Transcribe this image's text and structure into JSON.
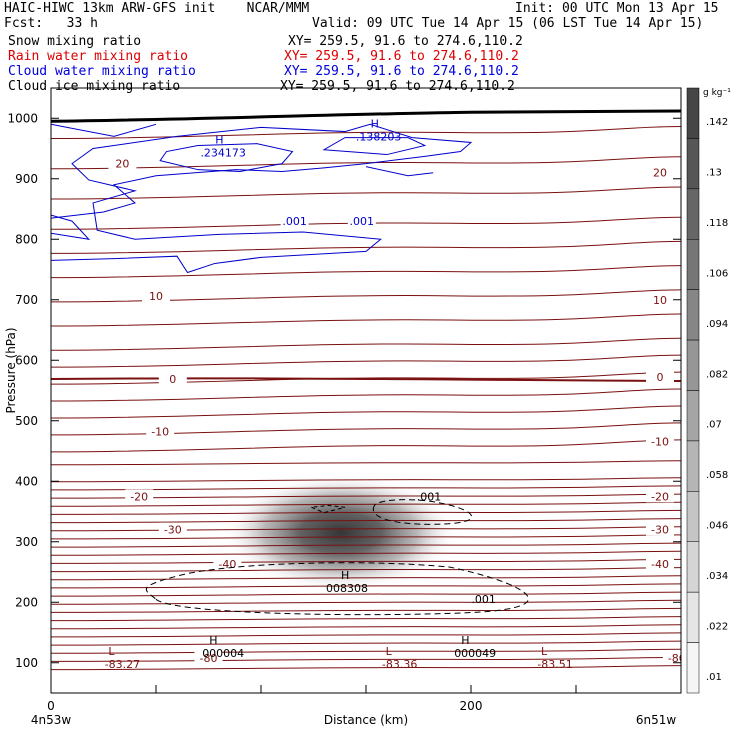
{
  "header": {
    "title_left": "HAIC-HIWC 13km ARW-GFS init    NCAR/MMM",
    "init": "Init: 00 UTC Mon 13 Apr 15",
    "fcst": "Fcst:   33 h",
    "valid": "Valid: 09 UTC Tue 14 Apr 15 (06 LST Tue 14 Apr 15)",
    "fields": [
      {
        "name": "Snow mixing ratio",
        "xy": "XY= 259.5, 91.6 to 274.6,110.2",
        "color": "#000000"
      },
      {
        "name": "Rain water mixing ratio",
        "xy": "XY= 259.5, 91.6 to 274.6,110.2",
        "color": "#dd0000"
      },
      {
        "name": "Cloud water mixing ratio",
        "xy": "XY= 259.5, 91.6 to 274.6,110.2",
        "color": "#0000dd"
      },
      {
        "name": "Cloud ice mixing ratio",
        "xy": "XY= 259.5, 91.6 to 274.6,110.2",
        "color": "#000000"
      }
    ]
  },
  "chart_data": {
    "type": "heatmap",
    "xlabel": "Distance (km)",
    "ylabel": "Pressure (hPa)",
    "xlim": [
      0,
      300
    ],
    "ylim": [
      1050,
      50
    ],
    "x_ticks": [
      0,
      200
    ],
    "x_end_labels": {
      "left": "4n53w",
      "right": "6n51w"
    },
    "y_ticks": [
      100,
      200,
      300,
      400,
      500,
      600,
      700,
      800,
      900,
      1000
    ],
    "colorbar": {
      "units": "g kg⁻¹",
      "ticks": [
        ".142",
        ".13",
        ".118",
        ".106",
        ".094",
        ".082",
        ".07",
        ".058",
        ".046",
        ".034",
        ".022",
        ".01"
      ]
    },
    "snow_core": {
      "x": 138,
      "p": 315,
      "max": ".142"
    },
    "temperature_isotherms": {
      "color": "#7a1010",
      "levels": [
        {
          "label": "-80",
          "p": 108
        },
        {
          "label": "-40",
          "p": 262
        },
        {
          "label": "-30",
          "p": 318
        },
        {
          "label": "-20",
          "p": 375
        },
        {
          "label": "-10",
          "p": 478
        },
        {
          "label": "0",
          "p": 569
        },
        {
          "label": "10",
          "p": 705
        },
        {
          "label": "20",
          "p": 926
        }
      ],
      "label_positions": [
        {
          "label": "-80",
          "x": 75,
          "p": 108
        },
        {
          "label": "-80",
          "x": 298,
          "p": 108
        },
        {
          "label": "-40",
          "x": 84,
          "p": 263
        },
        {
          "label": "-40",
          "x": 290,
          "p": 263
        },
        {
          "label": "-30",
          "x": 58,
          "p": 320
        },
        {
          "label": "-30",
          "x": 290,
          "p": 320
        },
        {
          "label": "-20",
          "x": 42,
          "p": 375
        },
        {
          "label": "-20",
          "x": 290,
          "p": 375
        },
        {
          "label": "-10",
          "x": 52,
          "p": 482
        },
        {
          "label": "-10",
          "x": 290,
          "p": 466
        },
        {
          "label": "0",
          "x": 58,
          "p": 569
        },
        {
          "label": "0",
          "x": 290,
          "p": 572
        },
        {
          "label": "10",
          "x": 50,
          "p": 706
        },
        {
          "label": "10",
          "x": 290,
          "p": 700
        },
        {
          "label": "20",
          "x": 34,
          "p": 925
        },
        {
          "label": "20",
          "x": 290,
          "p": 910
        }
      ],
      "extrema": [
        {
          "type": "L",
          "value": "-83.27",
          "x": 34,
          "p": 100
        },
        {
          "type": "H",
          "value": "000004",
          "x": 82,
          "p": 118
        },
        {
          "type": "L",
          "value": "-83.36",
          "x": 166,
          "p": 100
        },
        {
          "type": "H",
          "value": "000049",
          "x": 202,
          "p": 118
        },
        {
          "type": "L",
          "value": "-83.51",
          "x": 240,
          "p": 100
        }
      ]
    },
    "cloud_ice_contours": {
      "color": "#000000",
      "level": ".001",
      "labels": [
        {
          "text": ".001",
          "x": 206,
          "p": 205
        },
        {
          "text": ".001",
          "x": 180,
          "p": 375
        }
      ],
      "extrema": [
        {
          "type": "H",
          "value": "008308",
          "x": 140,
          "p": 225
        }
      ]
    },
    "cloud_water_contours": {
      "color": "#0000cc",
      "level": ".001",
      "labels": [
        {
          "text": ".001",
          "x": 116,
          "p": 830
        },
        {
          "text": ".001",
          "x": 148,
          "p": 830
        }
      ],
      "extrema": [
        {
          "type": "H",
          "value": ".234173",
          "x": 82,
          "p": 943
        },
        {
          "type": "H",
          "value": ".138203",
          "x": 156,
          "p": 970
        }
      ]
    }
  }
}
